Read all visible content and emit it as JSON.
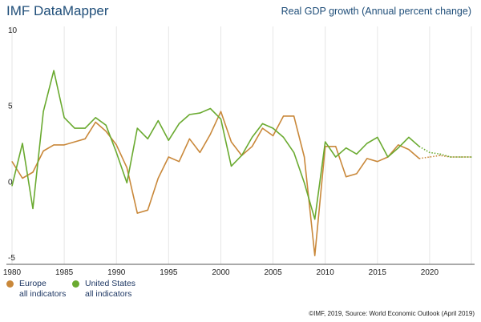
{
  "header": {
    "app_title": "IMF DataMapper",
    "chart_title": "Real GDP growth (Annual percent change)"
  },
  "legend": {
    "items": [
      {
        "line1": "Europe",
        "line2": "all indicators",
        "color": "#c9883a"
      },
      {
        "line1": "United States",
        "line2": "all indicators",
        "color": "#6aaa30"
      }
    ]
  },
  "footer": {
    "source": "©IMF, 2019, Source: World Economic Outlook (April 2019)"
  },
  "chart_data": {
    "type": "line",
    "title": "Real GDP growth (Annual percent change)",
    "xlim": [
      1980,
      2024
    ],
    "ylim": [
      -5,
      10
    ],
    "x_ticks": [
      1980,
      1985,
      1990,
      1995,
      2000,
      2005,
      2010,
      2015,
      2020
    ],
    "y_ticks": [
      10,
      5,
      0,
      -5
    ],
    "grid": "vertical",
    "projection_start": 2019,
    "series": [
      {
        "name": "Europe",
        "color": "#c9883a",
        "x": [
          1980,
          1981,
          1982,
          1983,
          1984,
          1985,
          1986,
          1987,
          1988,
          1989,
          1990,
          1991,
          1992,
          1993,
          1994,
          1995,
          1996,
          1997,
          1998,
          1999,
          2000,
          2001,
          2002,
          2003,
          2004,
          2005,
          2006,
          2007,
          2008,
          2009,
          2010,
          2011,
          2012,
          2013,
          2014,
          2015,
          2016,
          2017,
          2018,
          2019,
          2020,
          2021,
          2022,
          2023,
          2024
        ],
        "values": [
          1.3,
          0.2,
          0.6,
          2.0,
          2.4,
          2.4,
          2.6,
          2.8,
          3.9,
          3.3,
          2.4,
          0.9,
          -2.1,
          -1.9,
          0.2,
          1.6,
          1.3,
          2.8,
          1.9,
          3.1,
          4.6,
          2.6,
          1.7,
          2.3,
          3.5,
          3.0,
          4.3,
          4.3,
          1.6,
          -4.9,
          2.3,
          2.3,
          0.3,
          0.5,
          1.5,
          1.3,
          1.6,
          2.4,
          2.1,
          1.5,
          1.6,
          1.7,
          1.6,
          1.6,
          1.6
        ]
      },
      {
        "name": "United States",
        "color": "#6aaa30",
        "x": [
          1980,
          1981,
          1982,
          1983,
          1984,
          1985,
          1986,
          1987,
          1988,
          1989,
          1990,
          1991,
          1992,
          1993,
          1994,
          1995,
          1996,
          1997,
          1998,
          1999,
          2000,
          2001,
          2002,
          2003,
          2004,
          2005,
          2006,
          2007,
          2008,
          2009,
          2010,
          2011,
          2012,
          2013,
          2014,
          2015,
          2016,
          2017,
          2018,
          2019,
          2020,
          2021,
          2022,
          2023,
          2024
        ],
        "values": [
          -0.3,
          2.5,
          -1.8,
          4.6,
          7.3,
          4.2,
          3.5,
          3.5,
          4.2,
          3.7,
          1.9,
          -0.1,
          3.5,
          2.8,
          4.0,
          2.7,
          3.8,
          4.4,
          4.5,
          4.8,
          4.1,
          1.0,
          1.7,
          2.9,
          3.8,
          3.5,
          2.9,
          1.9,
          -0.1,
          -2.5,
          2.6,
          1.6,
          2.2,
          1.8,
          2.5,
          2.9,
          1.6,
          2.2,
          2.9,
          2.3,
          1.9,
          1.8,
          1.6,
          1.6,
          1.6
        ]
      }
    ]
  }
}
